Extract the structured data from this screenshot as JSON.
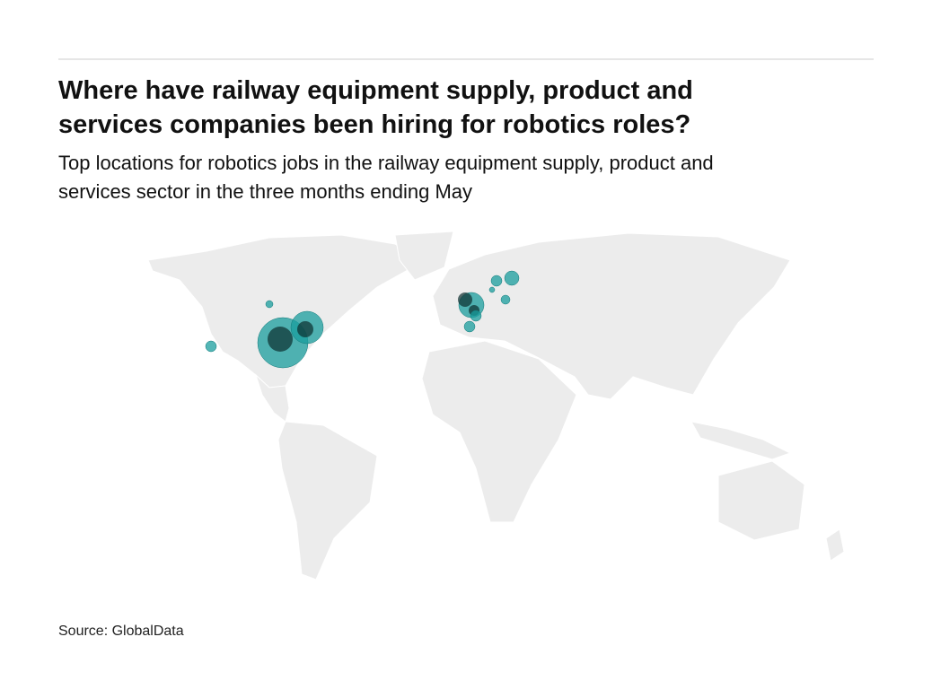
{
  "header": {
    "title": [
      "Where have railway equipment supply, product and",
      "services companies been hiring for robotics roles?"
    ],
    "subtitle": [
      "Top locations for robotics jobs in the railway equipment supply, product and",
      "services sector in the three months ending May"
    ]
  },
  "footer": {
    "source": "Source: GlobalData"
  }
}
